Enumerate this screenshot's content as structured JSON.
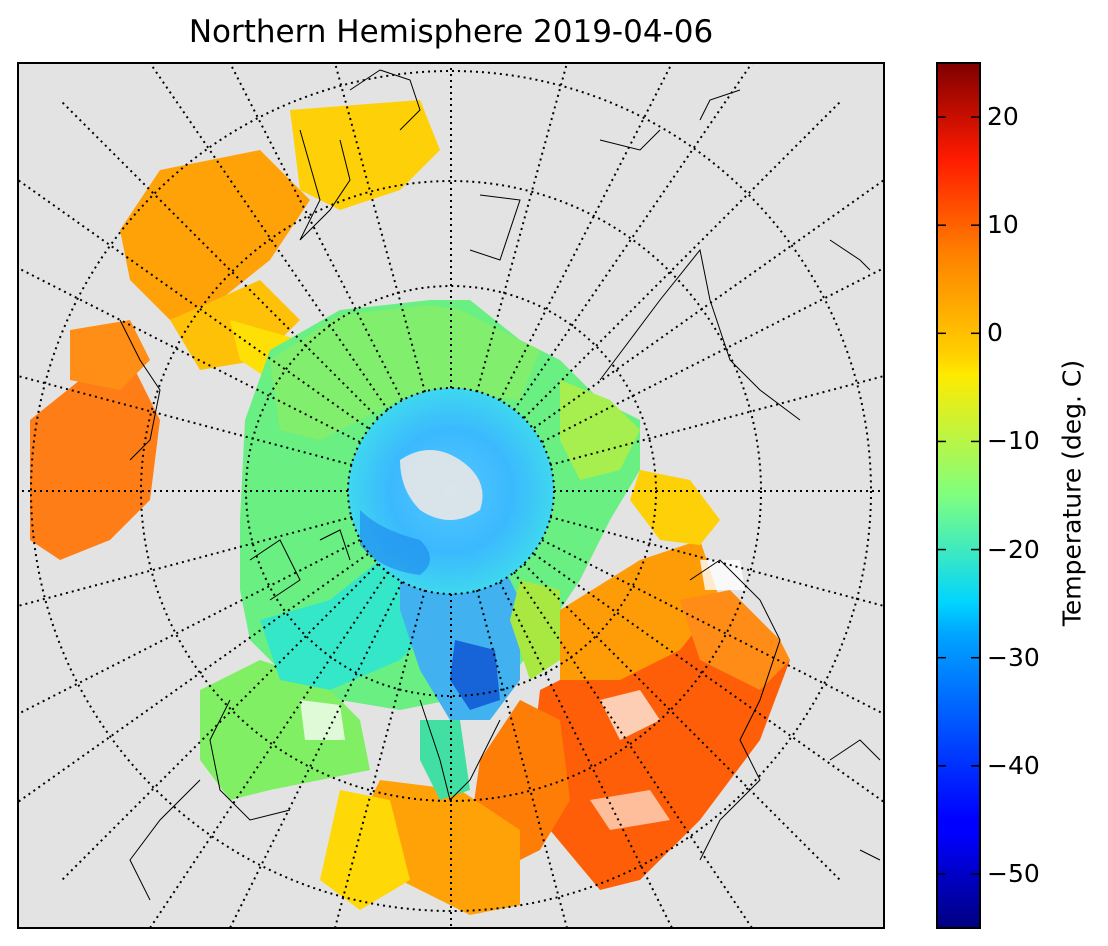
{
  "title": "Northern Hemisphere 2019-04-06",
  "colorbar": {
    "label": "Temperature (deg. C)",
    "min": -55,
    "max": 25,
    "ticks": [
      {
        "value": 20,
        "label": "20"
      },
      {
        "value": 10,
        "label": "10"
      },
      {
        "value": 0,
        "label": "0"
      },
      {
        "value": -10,
        "label": "−10"
      },
      {
        "value": -20,
        "label": "−20"
      },
      {
        "value": -30,
        "label": "−30"
      },
      {
        "value": -40,
        "label": "−40"
      },
      {
        "value": -50,
        "label": "−50"
      }
    ],
    "colormap": "jet",
    "colors": [
      "#00007f",
      "#0000ff",
      "#007fff",
      "#00ffff",
      "#7fff7f",
      "#ffff00",
      "#ff7f00",
      "#ff0000",
      "#7f0000"
    ]
  },
  "map": {
    "projection": "north polar stereographic",
    "background_color": "#e3e3e3",
    "graticule": "dotted parallels and meridians"
  }
}
